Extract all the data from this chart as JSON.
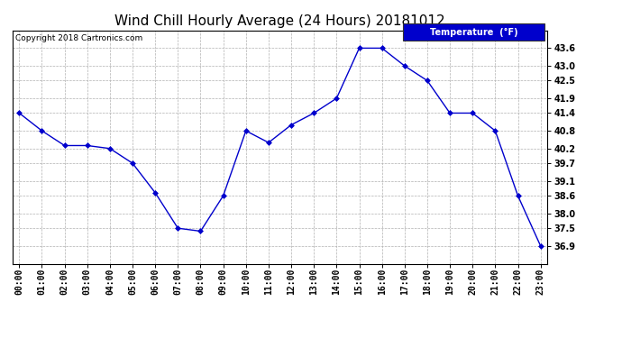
{
  "title": "Wind Chill Hourly Average (24 Hours) 20181012",
  "copyright_text": "Copyright 2018 Cartronics.com",
  "legend_label": "Temperature  (°F)",
  "hours": [
    0,
    1,
    2,
    3,
    4,
    5,
    6,
    7,
    8,
    9,
    10,
    11,
    12,
    13,
    14,
    15,
    16,
    17,
    18,
    19,
    20,
    21,
    22,
    23
  ],
  "x_labels": [
    "00:00",
    "01:00",
    "02:00",
    "03:00",
    "04:00",
    "05:00",
    "06:00",
    "07:00",
    "08:00",
    "09:00",
    "10:00",
    "11:00",
    "12:00",
    "13:00",
    "14:00",
    "15:00",
    "16:00",
    "17:00",
    "18:00",
    "19:00",
    "20:00",
    "21:00",
    "22:00",
    "23:00"
  ],
  "temperatures": [
    41.4,
    40.8,
    40.3,
    40.3,
    40.2,
    39.7,
    38.7,
    37.5,
    37.4,
    38.6,
    40.8,
    40.4,
    41.0,
    41.4,
    41.9,
    43.6,
    43.6,
    43.0,
    42.5,
    41.4,
    41.4,
    40.8,
    38.6,
    36.9
  ],
  "y_ticks": [
    36.9,
    37.5,
    38.0,
    38.6,
    39.1,
    39.7,
    40.2,
    40.8,
    41.4,
    41.9,
    42.5,
    43.0,
    43.6
  ],
  "ylim_min": 36.3,
  "ylim_max": 44.2,
  "xlim_min": -0.3,
  "xlim_max": 23.3,
  "line_color": "#0000cc",
  "marker_color": "#0000cc",
  "background_color": "#ffffff",
  "plot_bg_color": "#ffffff",
  "grid_color": "#b0b0b0",
  "title_fontsize": 11,
  "legend_bg_color": "#0000cc",
  "legend_text_color": "#ffffff",
  "tick_fontsize": 7,
  "copyright_fontsize": 6.5
}
